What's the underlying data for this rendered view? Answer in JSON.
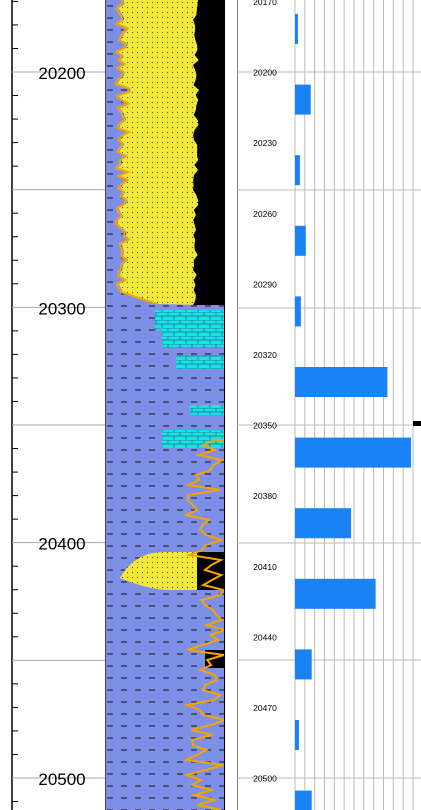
{
  "depth_track": {
    "labels": [
      "20200",
      "20300",
      "20400",
      "20500"
    ],
    "major_values": [
      20200,
      20300,
      20400,
      20500
    ]
  },
  "litho_track": {
    "legend_colors": {
      "sand": "#f2e83a",
      "shale": "#7d8fe6",
      "carbonate": "#1de0e8",
      "coal": "#000000",
      "curve": "#f5a400"
    }
  },
  "chart_data": {
    "type": "bar",
    "orientation": "horizontal",
    "categories": [
      "20170",
      "20200",
      "20230",
      "20260",
      "20290",
      "20320",
      "20350",
      "20380",
      "20410",
      "20440",
      "20470",
      "20500"
    ],
    "values": [
      3,
      16,
      5,
      11,
      6,
      94,
      118,
      57,
      82,
      17,
      4,
      17
    ],
    "xlim": [
      0,
      120
    ],
    "grid": true,
    "bar_color": "#1a82f5"
  }
}
